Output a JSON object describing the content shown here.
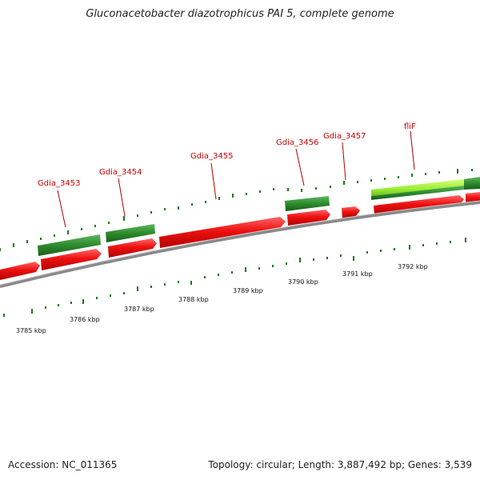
{
  "title": "Gluconacetobacter diazotrophicus PAI 5, complete genome",
  "accession": "Accession: NC_011365",
  "summary": "Topology: circular; Length: 3,887,492 bp; Genes: 3,539",
  "colors": {
    "forward_cds": "#ee1111",
    "reverse_cds": "#2e8b2e",
    "highlight_cds": "#99ee33",
    "backbone": "#8a8a8a",
    "tick": "#1a7a1a",
    "gene_label": "#cc0000"
  },
  "scale_labels": [
    "3785 kbp",
    "3786 kbp",
    "3787 kbp",
    "3788 kbp",
    "3789 kbp",
    "3790 kbp",
    "3791 kbp",
    "3792 kbp"
  ],
  "gene_labels": [
    "Gdia_3453",
    "Gdia_3454",
    "Gdia_3455",
    "Gdia_3456",
    "Gdia_3457",
    "fliF"
  ]
}
